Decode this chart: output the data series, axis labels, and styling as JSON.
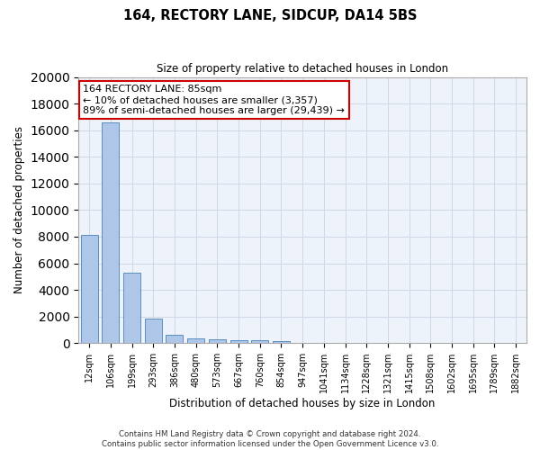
{
  "title": "164, RECTORY LANE, SIDCUP, DA14 5BS",
  "subtitle": "Size of property relative to detached houses in London",
  "xlabel": "Distribution of detached houses by size in London",
  "ylabel": "Number of detached properties",
  "categories": [
    "12sqm",
    "106sqm",
    "199sqm",
    "293sqm",
    "386sqm",
    "480sqm",
    "573sqm",
    "667sqm",
    "760sqm",
    "854sqm",
    "947sqm",
    "1041sqm",
    "1134sqm",
    "1228sqm",
    "1321sqm",
    "1415sqm",
    "1508sqm",
    "1602sqm",
    "1695sqm",
    "1789sqm",
    "1882sqm"
  ],
  "values": [
    8100,
    16600,
    5300,
    1850,
    650,
    370,
    280,
    230,
    200,
    180,
    0,
    0,
    0,
    0,
    0,
    0,
    0,
    0,
    0,
    0,
    0
  ],
  "bar_color": "#aec6e8",
  "bar_edge_color": "#5a8fc0",
  "annotation_line1": "164 RECTORY LANE: 85sqm",
  "annotation_line2": "← 10% of detached houses are smaller (3,357)",
  "annotation_line3": "89% of semi-detached houses are larger (29,439) →",
  "annotation_box_color": "#ffffff",
  "annotation_box_edge": "#cc0000",
  "ylim": [
    0,
    20000
  ],
  "yticks": [
    0,
    2000,
    4000,
    6000,
    8000,
    10000,
    12000,
    14000,
    16000,
    18000,
    20000
  ],
  "grid_color": "#d0d8e8",
  "bg_color": "#eef2fa",
  "footer1": "Contains HM Land Registry data © Crown copyright and database right 2024.",
  "footer2": "Contains public sector information licensed under the Open Government Licence v3.0."
}
